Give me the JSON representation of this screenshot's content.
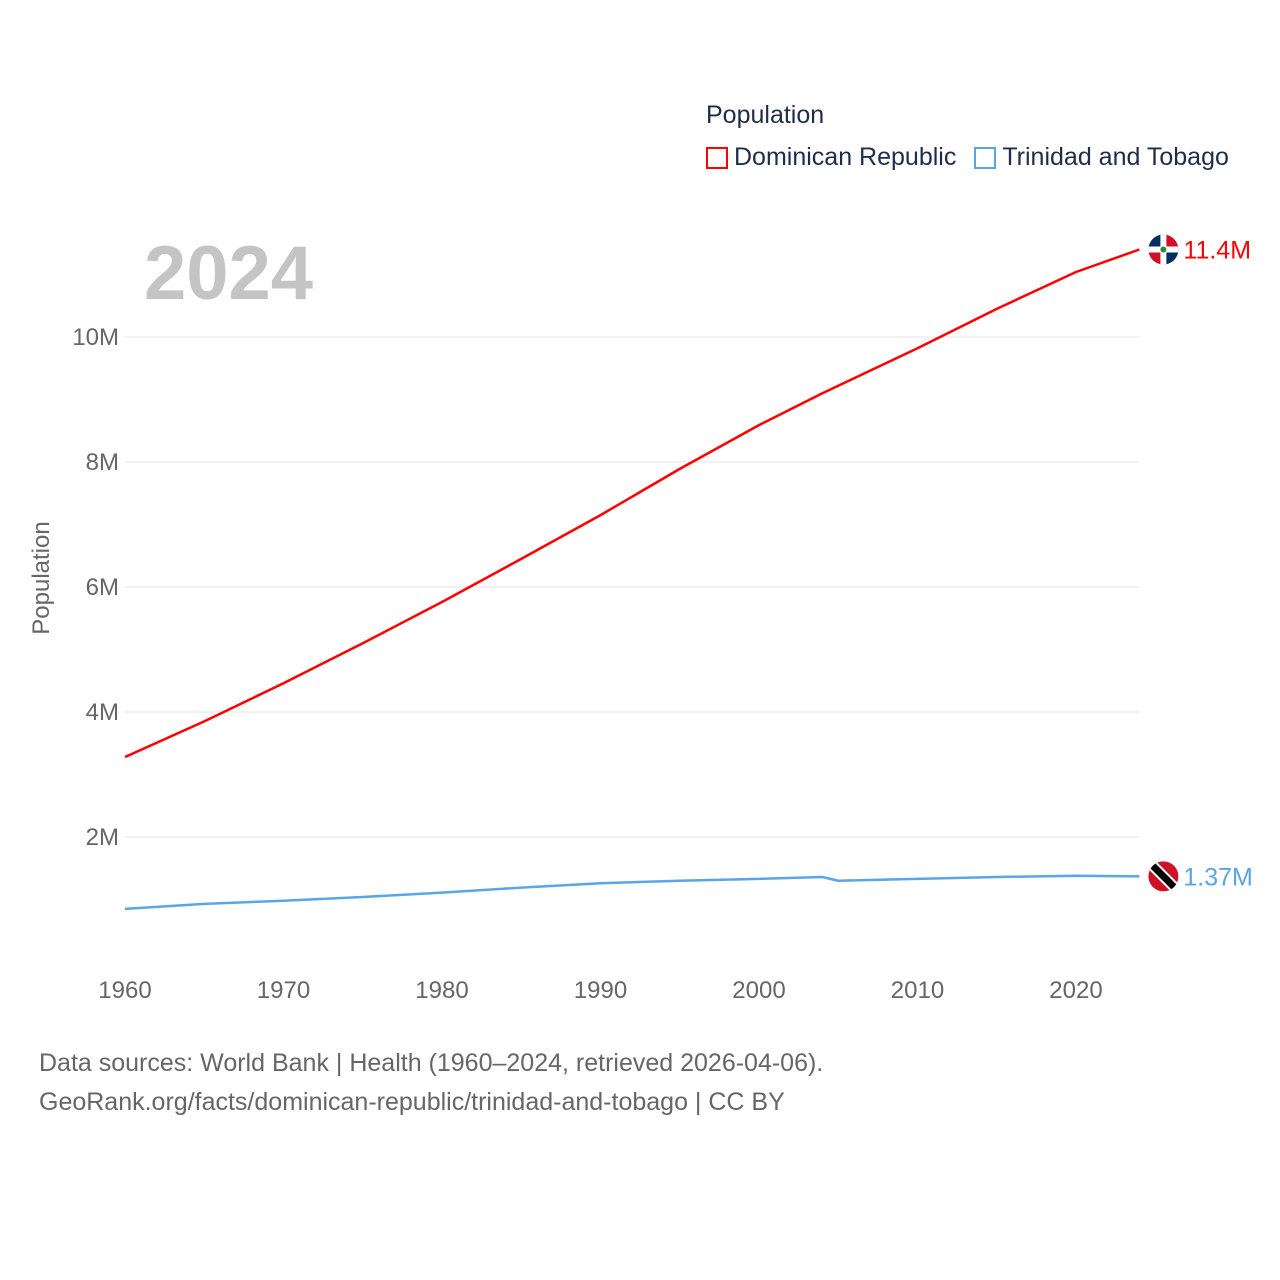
{
  "chart_data": {
    "type": "line",
    "title": "Population",
    "year_label": "2024",
    "xlabel": "",
    "ylabel": "Population",
    "xlim": [
      1960,
      2024
    ],
    "ylim": [
      0,
      11400000
    ],
    "x_ticks": [
      1960,
      1970,
      1980,
      1990,
      2000,
      2010,
      2020
    ],
    "x_tick_labels": [
      "1960",
      "1970",
      "1980",
      "1990",
      "2000",
      "2010",
      "2020"
    ],
    "y_ticks": [
      2000000,
      4000000,
      6000000,
      8000000,
      10000000
    ],
    "y_tick_labels": [
      "2M",
      "4M",
      "6M",
      "8M",
      "10M"
    ],
    "grid": true,
    "legend_position": "top-right",
    "series": [
      {
        "name": "Dominican Republic",
        "color": "#ff0000",
        "end_label": "11.4M",
        "flag": "dominican-republic-flag-icon",
        "x": [
          1960,
          1965,
          1970,
          1975,
          1980,
          1985,
          1990,
          1995,
          2000,
          2004,
          2010,
          2015,
          2020,
          2024
        ],
        "values": [
          3280000,
          3850000,
          4460000,
          5100000,
          5760000,
          6450000,
          7150000,
          7890000,
          8590000,
          9100000,
          9820000,
          10450000,
          11040000,
          11400000
        ]
      },
      {
        "name": "Trinidad and Tobago",
        "color": "#5aa5e8",
        "end_label": "1.37M",
        "flag": "trinidad-and-tobago-flag-icon",
        "x": [
          1960,
          1965,
          1970,
          1975,
          1980,
          1985,
          1990,
          1995,
          2000,
          2004,
          2005,
          2010,
          2015,
          2020,
          2024
        ],
        "values": [
          850000,
          930000,
          980000,
          1040000,
          1110000,
          1190000,
          1260000,
          1300000,
          1330000,
          1360000,
          1300000,
          1330000,
          1360000,
          1380000,
          1370000
        ]
      }
    ]
  },
  "footer": {
    "line1": "Data sources: World Bank | Health (1960–2024, retrieved 2026-04-06).",
    "line2": "GeoRank.org/facts/dominican-republic/trinidad-and-tobago | CC BY"
  }
}
